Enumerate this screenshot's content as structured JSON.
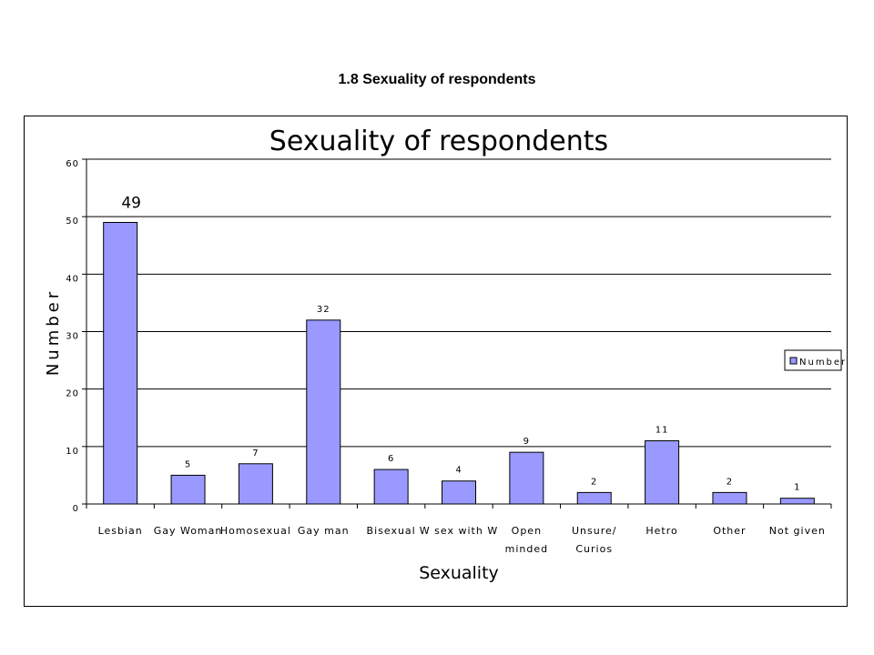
{
  "page": {
    "heading": "1.8 Sexuality of respondents"
  },
  "chart_data": {
    "type": "bar",
    "title": "Sexuality of respondents",
    "xlabel": "Sexuality",
    "ylabel": "Number",
    "ylim": [
      0,
      60
    ],
    "yticks": [
      0,
      10,
      20,
      30,
      40,
      50,
      60
    ],
    "categories": [
      [
        "Lesbian"
      ],
      [
        "Gay Woman"
      ],
      [
        "Homosexual"
      ],
      [
        "Gay man"
      ],
      [
        "Bisexual"
      ],
      [
        "W sex with W"
      ],
      [
        "Open",
        "minded"
      ],
      [
        "Unsure/",
        "Curios"
      ],
      [
        "Hetro"
      ],
      [
        "Other"
      ],
      [
        "Not given"
      ]
    ],
    "series": [
      {
        "name": "Number",
        "values": [
          49,
          5,
          7,
          32,
          6,
          4,
          9,
          2,
          11,
          2,
          1
        ],
        "color": "#9999ff"
      }
    ],
    "grid": true,
    "legend": "right"
  }
}
